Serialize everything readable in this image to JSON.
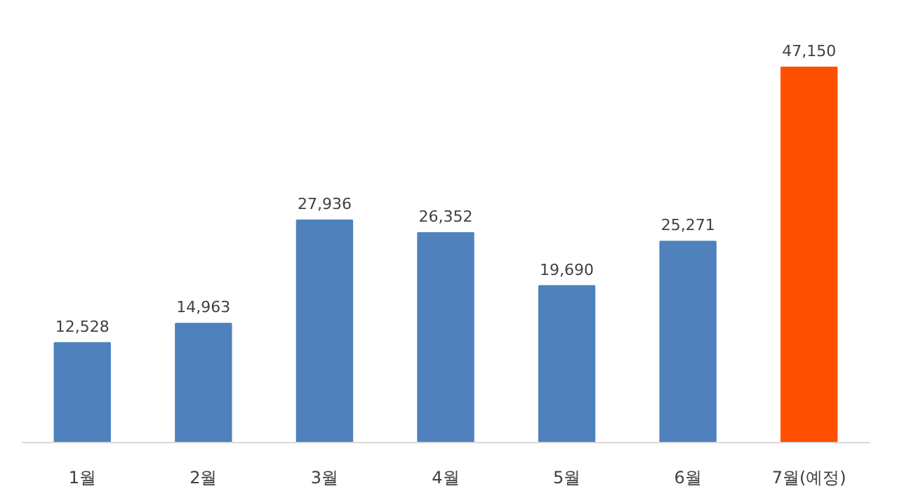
{
  "chart_data": {
    "type": "bar",
    "categories": [
      "1월",
      "2월",
      "3월",
      "4월",
      "5월",
      "6월",
      "7월(예정)"
    ],
    "values": [
      12528,
      14963,
      27936,
      26352,
      19690,
      25271,
      47150
    ],
    "colors": [
      "#4f81bd",
      "#4f81bd",
      "#4f81bd",
      "#4f81bd",
      "#4f81bd",
      "#4f81bd",
      "#ff5000"
    ],
    "value_labels": [
      "12,528",
      "14,963",
      "27,936",
      "26,352",
      "19,690",
      "25,271",
      "47,150"
    ],
    "grid": false
  }
}
